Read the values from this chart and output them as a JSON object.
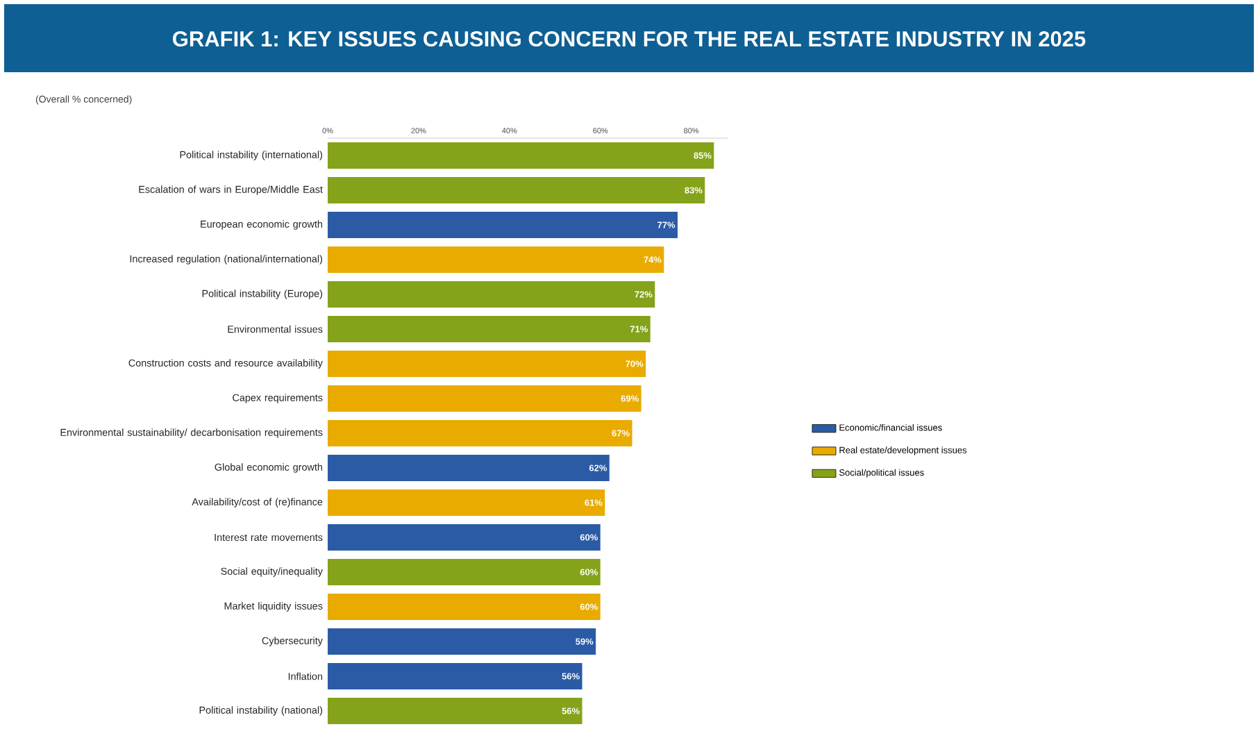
{
  "chart_data": {
    "type": "bar",
    "orientation": "horizontal",
    "stacked": true,
    "title": "GRAFIK 1: KEY ISSUES CAUSING CONCERN FOR THE REAL ESTATE INDUSTRY IN 2025",
    "subtitle": "(Overall % concerned)",
    "categories": [
      "Political instability (international)",
      "Escalation of wars in Europe/Middle East",
      "European economic growth",
      "Increased regulation (national/international)",
      "Political instability (Europe)",
      "Environmental issues",
      "Construction costs and resource availability",
      "Capex requirements",
      "Environmental sustainability/ decarbonisation requirements",
      "Global economic growth",
      "Availability/cost of (re)finance",
      "Interest rate movements",
      "Social equity/inequality",
      "Market liquidity issues",
      "Cybersecurity",
      "Inflation",
      "Political instability (national)"
    ],
    "series": [
      {
        "name": "Economic/financial issues",
        "color": "#2b5ba5",
        "values": [
          null,
          null,
          77,
          null,
          null,
          null,
          null,
          null,
          null,
          62,
          null,
          60,
          null,
          null,
          59,
          56,
          null
        ],
        "value_labels": [
          null,
          null,
          "77%",
          null,
          null,
          null,
          null,
          null,
          null,
          "62%",
          null,
          "60%",
          null,
          null,
          "59%",
          "56%",
          null
        ]
      },
      {
        "name": "Real estate/development issues",
        "color": "#e9ab00",
        "values": [
          null,
          null,
          null,
          74,
          null,
          null,
          70,
          69,
          67,
          null,
          61,
          null,
          null,
          60,
          null,
          null,
          null
        ],
        "value_labels": [
          null,
          null,
          null,
          "74%",
          null,
          null,
          "70%",
          "69%",
          "67%",
          null,
          "61%",
          null,
          null,
          "60%",
          null,
          null,
          null
        ]
      },
      {
        "name": "Social/political issues",
        "color": "#85a31a",
        "values": [
          85,
          83,
          null,
          null,
          72,
          71,
          null,
          null,
          null,
          null,
          null,
          null,
          60,
          null,
          null,
          null,
          56
        ],
        "value_labels": [
          "85%",
          "83%",
          null,
          null,
          "72%",
          "71%",
          null,
          null,
          null,
          null,
          null,
          null,
          "60%",
          null,
          null,
          null,
          "56%"
        ]
      }
    ],
    "xlim": [
      0,
      88
    ],
    "xticks": [
      {
        "value": 0,
        "label": "0%"
      },
      {
        "value": 20,
        "label": "20%"
      },
      {
        "value": 40,
        "label": "40%"
      },
      {
        "value": 60,
        "label": "60%"
      },
      {
        "value": 80,
        "label": "80%"
      }
    ],
    "legend": "right",
    "grid": false
  }
}
